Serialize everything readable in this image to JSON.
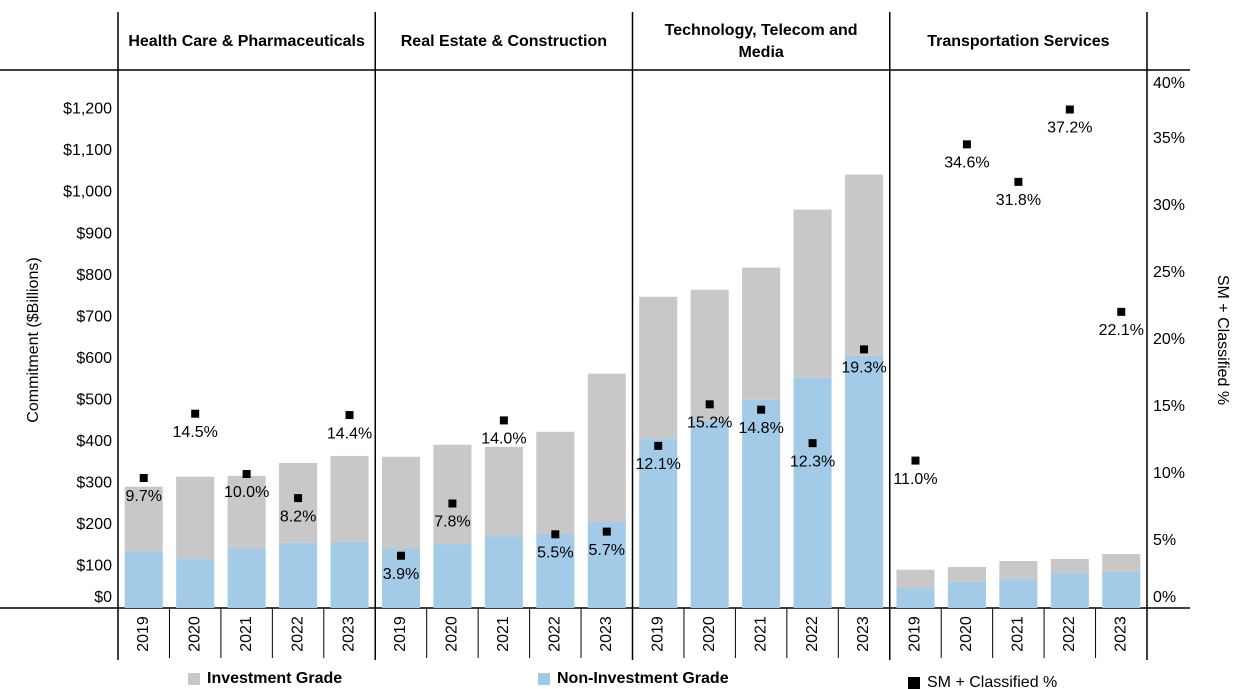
{
  "chart_data": {
    "type": "bar",
    "stacked": true,
    "y_label": "Commitment ($Billions)",
    "y2_label": "SM + Classified %",
    "ylim": [
      0,
      1290
    ],
    "yticks": [
      {
        "value": 0,
        "label": "$0"
      },
      {
        "value": 100,
        "label": "$100"
      },
      {
        "value": 200,
        "label": "$200"
      },
      {
        "value": 300,
        "label": "$300"
      },
      {
        "value": 400,
        "label": "$400"
      },
      {
        "value": 500,
        "label": "$500"
      },
      {
        "value": 600,
        "label": "$600"
      },
      {
        "value": 700,
        "label": "$700"
      },
      {
        "value": 800,
        "label": "$800"
      },
      {
        "value": 900,
        "label": "$900"
      },
      {
        "value": 1000,
        "label": "$1,000"
      },
      {
        "value": 1100,
        "label": "$1,100"
      },
      {
        "value": 1200,
        "label": "$1,200"
      }
    ],
    "y2lim": [
      0,
      40
    ],
    "y2ticks": [
      {
        "value": 0,
        "label": "0%"
      },
      {
        "value": 5,
        "label": "5%"
      },
      {
        "value": 10,
        "label": "10%"
      },
      {
        "value": 15,
        "label": "15%"
      },
      {
        "value": 20,
        "label": "20%"
      },
      {
        "value": 25,
        "label": "25%"
      },
      {
        "value": 30,
        "label": "30%"
      },
      {
        "value": 35,
        "label": "35%"
      },
      {
        "value": 40,
        "label": "40%"
      }
    ],
    "series": [
      {
        "name": "Investment Grade",
        "color": "#c8c8c8"
      },
      {
        "name": "Non-Investment Grade",
        "color": "#a3cbe8"
      },
      {
        "name": "SM + Classified %",
        "color": "#000000",
        "axis": "y2"
      }
    ],
    "panels": [
      {
        "title": "Health Care & Pharmaceuticals",
        "categories": [
          "2019",
          "2020",
          "2021",
          "2022",
          "2023"
        ],
        "values": [
          [
            157,
            196,
            176,
            192,
            207
          ],
          [
            135,
            120,
            142,
            157,
            159
          ],
          [
            9.7,
            14.5,
            10.0,
            8.2,
            14.4
          ]
        ],
        "value_labels": [
          "9.7%",
          "14.5%",
          "10.0%",
          "8.2%",
          "14.4%"
        ]
      },
      {
        "title": "Real Estate & Construction",
        "categories": [
          "2019",
          "2020",
          "2021",
          "2022",
          "2023"
        ],
        "values": [
          [
            222,
            239,
            215,
            246,
            357
          ],
          [
            142,
            154,
            173,
            178,
            207
          ],
          [
            3.9,
            7.8,
            14.0,
            5.5,
            5.7
          ]
        ],
        "value_labels": [
          "3.9%",
          "7.8%",
          "14.0%",
          "5.5%",
          "5.7%"
        ]
      },
      {
        "title": "Technology, Telecom and Media",
        "categories": [
          "2019",
          "2020",
          "2021",
          "2022",
          "2023"
        ],
        "values": [
          [
            342,
            315,
            318,
            405,
            436
          ],
          [
            407,
            451,
            501,
            554,
            607
          ],
          [
            12.1,
            15.2,
            14.8,
            12.3,
            19.3
          ]
        ],
        "value_labels": [
          "12.1%",
          "15.2%",
          "14.8%",
          "12.3%",
          "19.3%"
        ]
      },
      {
        "title": "Transportation Services",
        "categories": [
          "2019",
          "2020",
          "2021",
          "2022",
          "2023"
        ],
        "values": [
          [
            44,
            36,
            43,
            34,
            43
          ],
          [
            48,
            63,
            70,
            84,
            87
          ],
          [
            11.0,
            34.6,
            31.8,
            37.2,
            22.1
          ]
        ],
        "value_labels": [
          "11.0%",
          "34.6%",
          "31.8%",
          "37.2%",
          "22.1%"
        ]
      }
    ]
  }
}
